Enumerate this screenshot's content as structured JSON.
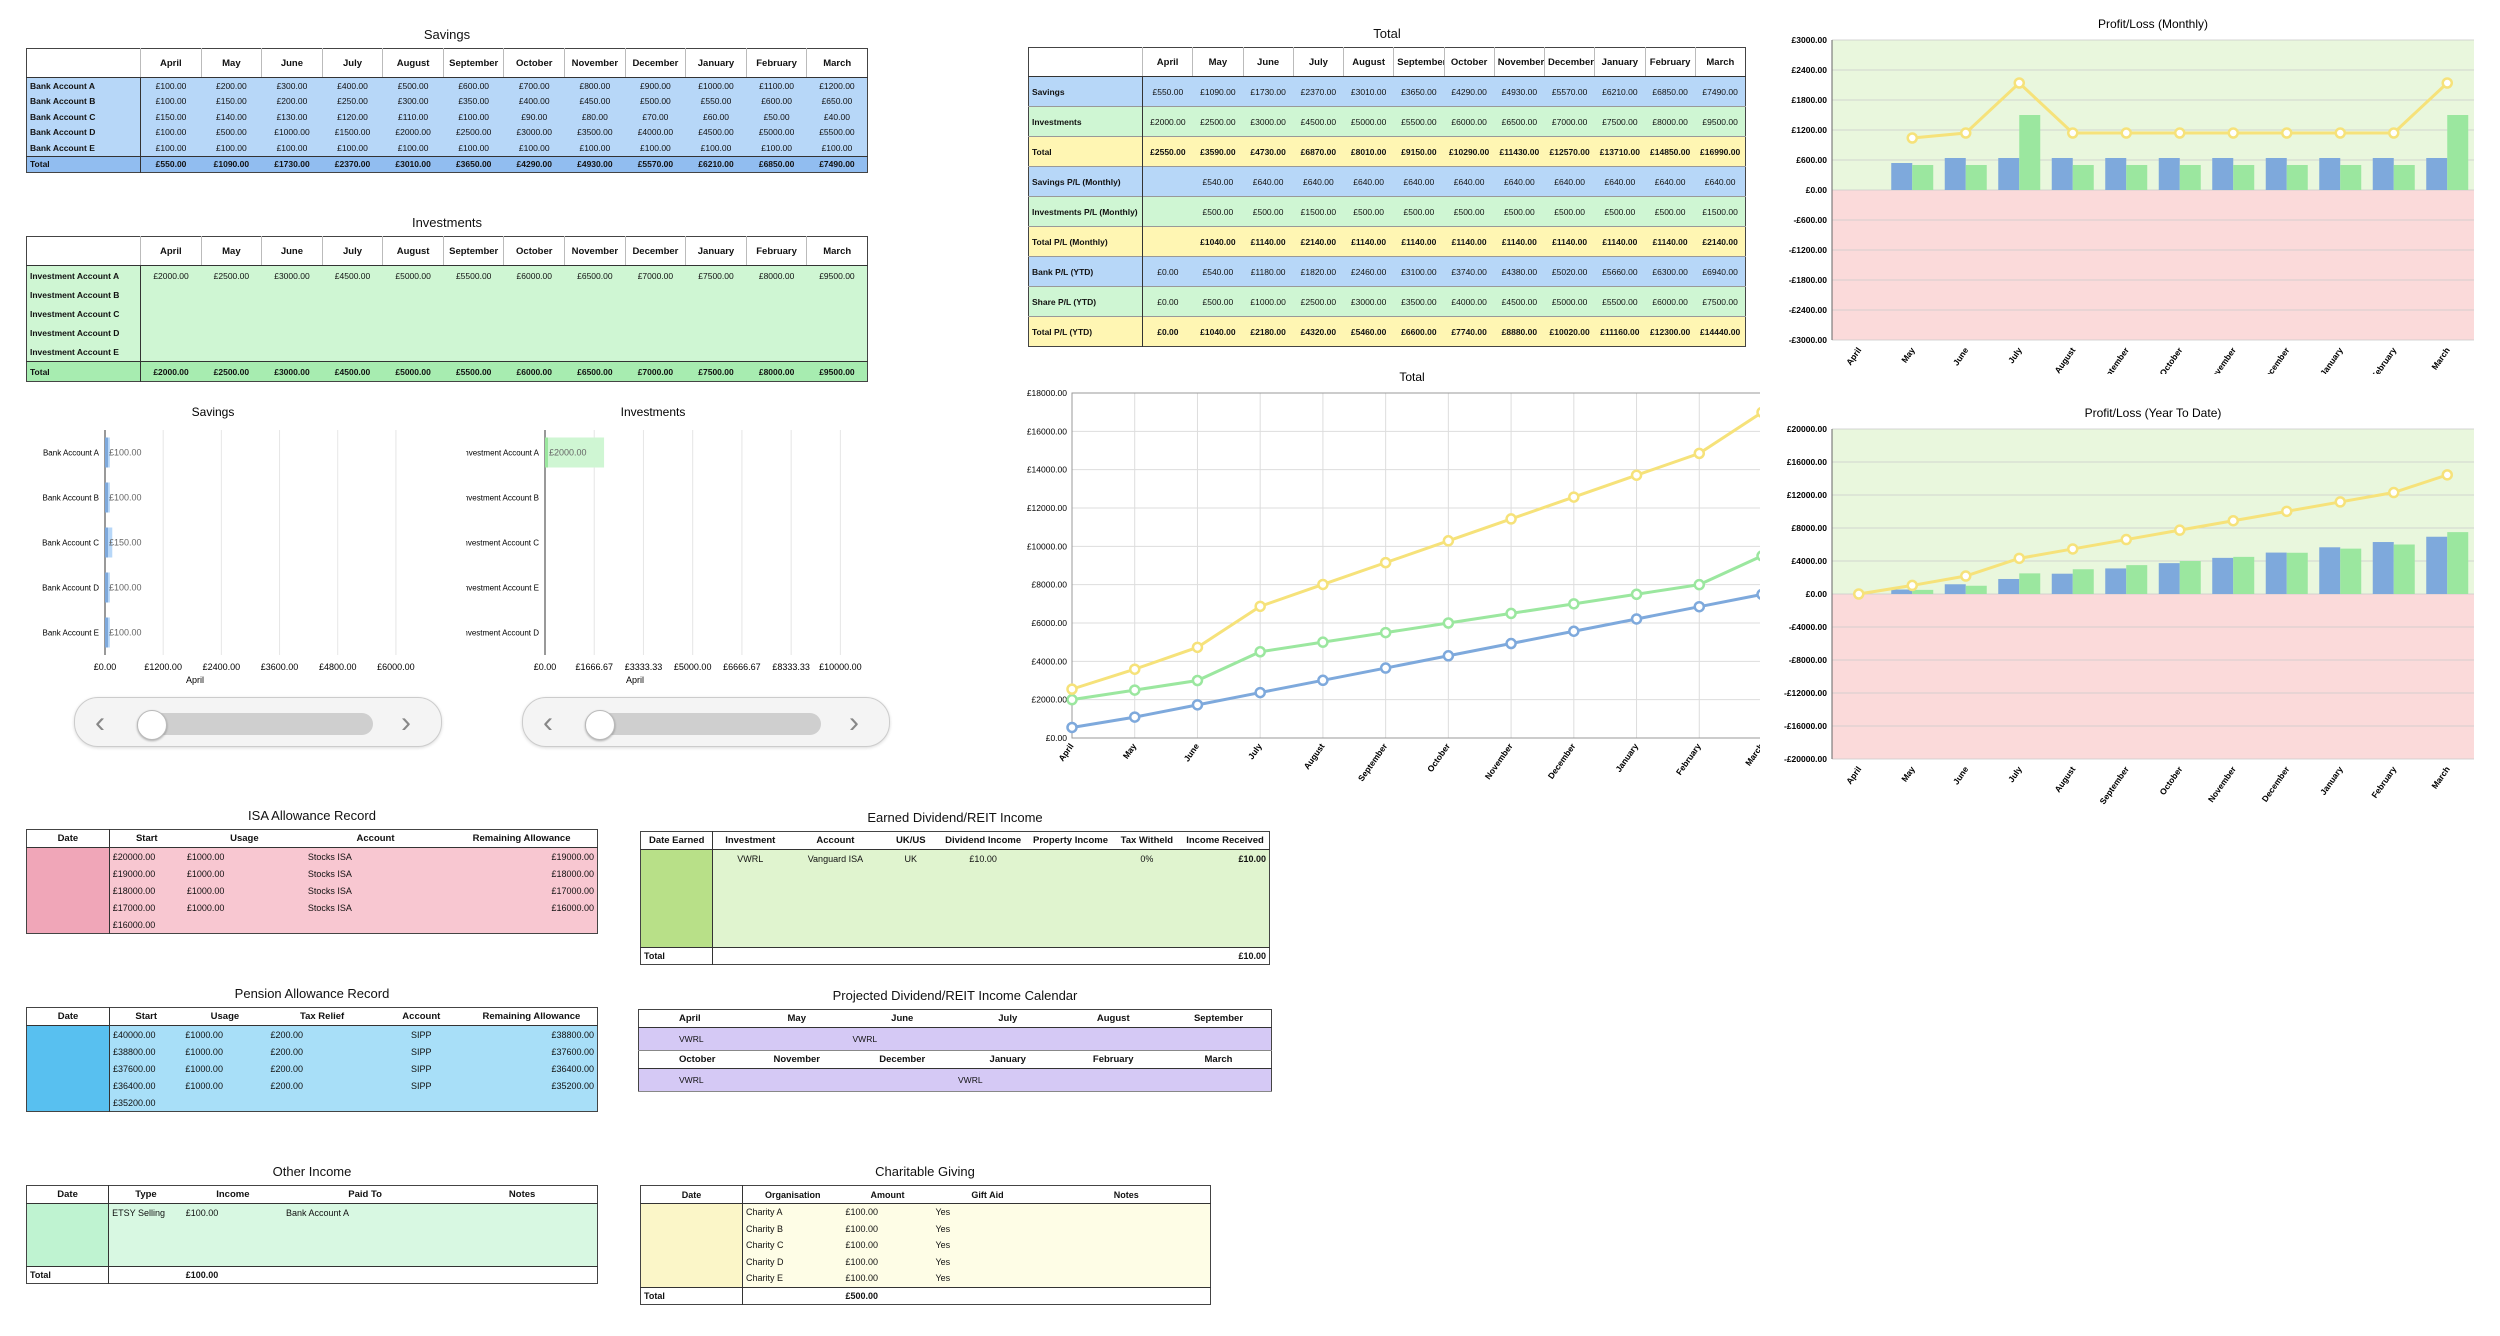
{
  "months": [
    "April",
    "May",
    "June",
    "July",
    "August",
    "September",
    "October",
    "November",
    "December",
    "January",
    "February",
    "March"
  ],
  "savings": {
    "title": "Savings",
    "rows": [
      {
        "label": "Bank Account A",
        "values": [
          "£100.00",
          "£200.00",
          "£300.00",
          "£400.00",
          "£500.00",
          "£600.00",
          "£700.00",
          "£800.00",
          "£900.00",
          "£1000.00",
          "£1100.00",
          "£1200.00"
        ]
      },
      {
        "label": "Bank Account B",
        "values": [
          "£100.00",
          "£150.00",
          "£200.00",
          "£250.00",
          "£300.00",
          "£350.00",
          "£400.00",
          "£450.00",
          "£500.00",
          "£550.00",
          "£600.00",
          "£650.00"
        ]
      },
      {
        "label": "Bank Account C",
        "values": [
          "£150.00",
          "£140.00",
          "£130.00",
          "£120.00",
          "£110.00",
          "£100.00",
          "£90.00",
          "£80.00",
          "£70.00",
          "£60.00",
          "£50.00",
          "£40.00"
        ]
      },
      {
        "label": "Bank Account D",
        "values": [
          "£100.00",
          "£500.00",
          "£1000.00",
          "£1500.00",
          "£2000.00",
          "£2500.00",
          "£3000.00",
          "£3500.00",
          "£4000.00",
          "£4500.00",
          "£5000.00",
          "£5500.00"
        ]
      },
      {
        "label": "Bank Account E",
        "values": [
          "£100.00",
          "£100.00",
          "£100.00",
          "£100.00",
          "£100.00",
          "£100.00",
          "£100.00",
          "£100.00",
          "£100.00",
          "£100.00",
          "£100.00",
          "£100.00"
        ]
      }
    ],
    "total": {
      "label": "Total",
      "values": [
        "£550.00",
        "£1090.00",
        "£1730.00",
        "£2370.00",
        "£3010.00",
        "£3650.00",
        "£4290.00",
        "£4930.00",
        "£5570.00",
        "£6210.00",
        "£6850.00",
        "£7490.00"
      ]
    }
  },
  "investments": {
    "title": "Investments",
    "rows": [
      {
        "label": "Investment Account A",
        "values": [
          "£2000.00",
          "£2500.00",
          "£3000.00",
          "£4500.00",
          "£5000.00",
          "£5500.00",
          "£6000.00",
          "£6500.00",
          "£7000.00",
          "£7500.00",
          "£8000.00",
          "£9500.00"
        ]
      },
      {
        "label": "Investment Account B",
        "values": [
          "",
          "",
          "",
          "",
          "",
          "",
          "",
          "",
          "",
          "",
          "",
          ""
        ]
      },
      {
        "label": "Investment Account C",
        "values": [
          "",
          "",
          "",
          "",
          "",
          "",
          "",
          "",
          "",
          "",
          "",
          ""
        ]
      },
      {
        "label": "Investment Account D",
        "values": [
          "",
          "",
          "",
          "",
          "",
          "",
          "",
          "",
          "",
          "",
          "",
          ""
        ]
      },
      {
        "label": "Investment Account E",
        "values": [
          "",
          "",
          "",
          "",
          "",
          "",
          "",
          "",
          "",
          "",
          "",
          ""
        ]
      }
    ],
    "total": {
      "label": "Total",
      "values": [
        "£2000.00",
        "£2500.00",
        "£3000.00",
        "£4500.00",
        "£5000.00",
        "£5500.00",
        "£6000.00",
        "£6500.00",
        "£7000.00",
        "£7500.00",
        "£8000.00",
        "£9500.00"
      ]
    }
  },
  "total_table": {
    "title": "Total",
    "rows": [
      {
        "label": "Savings",
        "style": "blue",
        "values": [
          "£550.00",
          "£1090.00",
          "£1730.00",
          "£2370.00",
          "£3010.00",
          "£3650.00",
          "£4290.00",
          "£4930.00",
          "£5570.00",
          "£6210.00",
          "£6850.00",
          "£7490.00"
        ]
      },
      {
        "label": "Investments",
        "style": "grn",
        "values": [
          "£2000.00",
          "£2500.00",
          "£3000.00",
          "£4500.00",
          "£5000.00",
          "£5500.00",
          "£6000.00",
          "£6500.00",
          "£7000.00",
          "£7500.00",
          "£8000.00",
          "£9500.00"
        ]
      },
      {
        "label": "Total",
        "style": "yel",
        "bold": true,
        "values": [
          "£2550.00",
          "£3590.00",
          "£4730.00",
          "£6870.00",
          "£8010.00",
          "£9150.00",
          "£10290.00",
          "£11430.00",
          "£12570.00",
          "£13710.00",
          "£14850.00",
          "£16990.00"
        ]
      },
      {
        "label": "Savings P/L (Monthly)",
        "style": "blue",
        "values": [
          "",
          "£540.00",
          "£640.00",
          "£640.00",
          "£640.00",
          "£640.00",
          "£640.00",
          "£640.00",
          "£640.00",
          "£640.00",
          "£640.00",
          "£640.00"
        ]
      },
      {
        "label": "Investments P/L (Monthly)",
        "style": "grn",
        "values": [
          "",
          "£500.00",
          "£500.00",
          "£1500.00",
          "£500.00",
          "£500.00",
          "£500.00",
          "£500.00",
          "£500.00",
          "£500.00",
          "£500.00",
          "£1500.00"
        ]
      },
      {
        "label": "Total P/L (Monthly)",
        "style": "yel",
        "bold": true,
        "values": [
          "",
          "£1040.00",
          "£1140.00",
          "£2140.00",
          "£1140.00",
          "£1140.00",
          "£1140.00",
          "£1140.00",
          "£1140.00",
          "£1140.00",
          "£1140.00",
          "£2140.00"
        ]
      },
      {
        "label": "Bank P/L (YTD)",
        "style": "blue",
        "values": [
          "£0.00",
          "£540.00",
          "£1180.00",
          "£1820.00",
          "£2460.00",
          "£3100.00",
          "£3740.00",
          "£4380.00",
          "£5020.00",
          "£5660.00",
          "£6300.00",
          "£6940.00"
        ]
      },
      {
        "label": "Share P/L (YTD)",
        "style": "grn",
        "values": [
          "£0.00",
          "£500.00",
          "£1000.00",
          "£2500.00",
          "£3000.00",
          "£3500.00",
          "£4000.00",
          "£4500.00",
          "£5000.00",
          "£5500.00",
          "£6000.00",
          "£7500.00"
        ]
      },
      {
        "label": "Total P/L (YTD)",
        "style": "yel",
        "bold": true,
        "values": [
          "£0.00",
          "£1040.00",
          "£2180.00",
          "£4320.00",
          "£5460.00",
          "£6600.00",
          "£7740.00",
          "£8880.00",
          "£10020.00",
          "£11160.00",
          "£12300.00",
          "£14440.00"
        ]
      }
    ]
  },
  "isa": {
    "title": "ISA Allowance Record",
    "headers": [
      "Date",
      "Start",
      "Usage",
      "Account",
      "Remaining Allowance"
    ],
    "rows": [
      [
        "",
        "£20000.00",
        "£1000.00",
        "Stocks ISA",
        "£19000.00"
      ],
      [
        "",
        "£19000.00",
        "£1000.00",
        "Stocks ISA",
        "£18000.00"
      ],
      [
        "",
        "£18000.00",
        "£1000.00",
        "Stocks ISA",
        "£17000.00"
      ],
      [
        "",
        "£17000.00",
        "£1000.00",
        "Stocks ISA",
        "£16000.00"
      ],
      [
        "",
        "£16000.00",
        "",
        "",
        ""
      ]
    ]
  },
  "pension": {
    "title": "Pension Allowance Record",
    "headers": [
      "Date",
      "Start",
      "Usage",
      "Tax Relief",
      "Account",
      "Remaining Allowance"
    ],
    "rows": [
      [
        "",
        "£40000.00",
        "£1000.00",
        "£200.00",
        "SIPP",
        "£38800.00"
      ],
      [
        "",
        "£38800.00",
        "£1000.00",
        "£200.00",
        "SIPP",
        "£37600.00"
      ],
      [
        "",
        "£37600.00",
        "£1000.00",
        "£200.00",
        "SIPP",
        "£36400.00"
      ],
      [
        "",
        "£36400.00",
        "£1000.00",
        "£200.00",
        "SIPP",
        "£35200.00"
      ],
      [
        "",
        "£35200.00",
        "",
        "",
        "",
        ""
      ]
    ]
  },
  "other_income": {
    "title": "Other Income",
    "headers": [
      "Date",
      "Type",
      "Income",
      "Paid To",
      "Notes"
    ],
    "rows": [
      [
        "",
        "ETSY Selling",
        "£100.00",
        "Bank Account A",
        ""
      ]
    ],
    "total_label": "Total",
    "total_value": "£100.00"
  },
  "dividend": {
    "title": "Earned Dividend/REIT Income",
    "headers": [
      "Date Earned",
      "Investment",
      "Account",
      "UK/US",
      "Dividend Income",
      "Property Income",
      "Tax Witheld",
      "Income Received"
    ],
    "rows": [
      [
        "",
        "VWRL",
        "Vanguard ISA",
        "UK",
        "£10.00",
        "",
        "0%",
        "£10.00"
      ]
    ],
    "total_label": "Total",
    "total_value": "£10.00"
  },
  "projected": {
    "title": "Projected Dividend/REIT Income Calendar",
    "row1_months": [
      "April",
      "May",
      "June",
      "July",
      "August",
      "September"
    ],
    "row1_values": [
      "VWRL",
      "",
      "VWRL",
      "",
      "",
      ""
    ],
    "row2_months": [
      "October",
      "November",
      "December",
      "January",
      "February",
      "March"
    ],
    "row2_values": [
      "VWRL",
      "",
      "",
      "VWRL",
      "",
      ""
    ]
  },
  "charity": {
    "title": "Charitable Giving",
    "headers": [
      "Date",
      "Organisation",
      "Amount",
      "Gift Aid",
      "Notes"
    ],
    "rows": [
      [
        "",
        "Charity A",
        "£100.00",
        "Yes",
        ""
      ],
      [
        "",
        "Charity B",
        "£100.00",
        "Yes",
        ""
      ],
      [
        "",
        "Charity C",
        "£100.00",
        "Yes",
        ""
      ],
      [
        "",
        "Charity D",
        "£100.00",
        "Yes",
        ""
      ],
      [
        "",
        "Charity E",
        "£100.00",
        "Yes",
        ""
      ]
    ],
    "total_label": "Total",
    "total_value": "£500.00"
  },
  "colors": {
    "savings": "#7ea9dc",
    "investments": "#9be79f",
    "total": "#f6e27a",
    "profit_bg": "#e9f7dd",
    "loss_bg": "#fbdada"
  },
  "chart_data": [
    {
      "type": "bar",
      "orientation": "horizontal",
      "title": "Savings",
      "xlabel": "April",
      "categories": [
        "Bank Account A",
        "Bank Account B",
        "Bank Account C",
        "Bank Account D",
        "Bank Account E"
      ],
      "values": [
        100,
        100,
        150,
        100,
        100
      ],
      "value_labels": [
        "£100.00",
        "£100.00",
        "£150.00",
        "£100.00",
        "£100.00"
      ],
      "xlim": [
        0,
        7200
      ],
      "xticks": [
        "£0.00",
        "£1200.00",
        "£2400.00",
        "£3600.00",
        "£4800.00",
        "£6000.00"
      ]
    },
    {
      "type": "bar",
      "orientation": "horizontal",
      "title": "Investments",
      "xlabel": "April",
      "categories": [
        "Investment Account A",
        "Investment Account B",
        "Investment Account C",
        "Investment Account E",
        "Investment Account D"
      ],
      "values": [
        2000,
        0,
        0,
        0,
        0
      ],
      "value_labels": [
        "£2000.00",
        "",
        "",
        "",
        ""
      ],
      "xlim": [
        0,
        11666.67
      ],
      "xticks": [
        "£0.00",
        "£1666.67",
        "£3333.33",
        "£5000.00",
        "£6666.67",
        "£8333.33",
        "£10000.00"
      ]
    },
    {
      "type": "line",
      "title": "Total",
      "categories": [
        "April",
        "May",
        "June",
        "July",
        "August",
        "September",
        "October",
        "November",
        "December",
        "January",
        "February",
        "March"
      ],
      "series": [
        {
          "values": [
            550,
            1090,
            1730,
            2370,
            3010,
            3650,
            4290,
            4930,
            5570,
            6210,
            6850,
            7490
          ],
          "color": "#7ea9dc"
        },
        {
          "values": [
            2000,
            2500,
            3000,
            4500,
            5000,
            5500,
            6000,
            6500,
            7000,
            7500,
            8000,
            9500
          ],
          "color": "#9be79f"
        },
        {
          "values": [
            2550,
            3590,
            4730,
            6870,
            8010,
            9150,
            10290,
            11430,
            12570,
            13710,
            14850,
            16990
          ],
          "color": "#f6e27a"
        }
      ],
      "ylim": [
        0,
        18000
      ],
      "yticks": [
        "£0.00",
        "£2000.00",
        "£4000.00",
        "£6000.00",
        "£8000.00",
        "£10000.00",
        "£12000.00",
        "£14000.00",
        "£16000.00",
        "£18000.00"
      ]
    },
    {
      "type": "bar",
      "title": "Profit/Loss (Monthly)",
      "categories": [
        "April",
        "May",
        "June",
        "July",
        "August",
        "September",
        "October",
        "November",
        "December",
        "January",
        "February",
        "March"
      ],
      "series": [
        {
          "values": [
            0,
            540,
            640,
            640,
            640,
            640,
            640,
            640,
            640,
            640,
            640,
            640
          ],
          "color": "#7ea9dc"
        },
        {
          "values": [
            0,
            500,
            500,
            1500,
            500,
            500,
            500,
            500,
            500,
            500,
            500,
            1500
          ],
          "color": "#9be79f"
        }
      ],
      "line": {
        "values": [
          null,
          1040,
          1140,
          2140,
          1140,
          1140,
          1140,
          1140,
          1140,
          1140,
          1140,
          2140
        ],
        "color": "#f6e27a"
      },
      "ylim": [
        -3000,
        3000
      ],
      "yticks": [
        "-£3000.00",
        "-£2400.00",
        "-£1800.00",
        "-£1200.00",
        "-£600.00",
        "£0.00",
        "£600.00",
        "£1200.00",
        "£1800.00",
        "£2400.00",
        "£3000.00"
      ]
    },
    {
      "type": "bar",
      "title": "Profit/Loss (Year To Date)",
      "categories": [
        "April",
        "May",
        "June",
        "July",
        "August",
        "September",
        "October",
        "November",
        "December",
        "January",
        "February",
        "March"
      ],
      "series": [
        {
          "values": [
            0,
            540,
            1180,
            1820,
            2460,
            3100,
            3740,
            4380,
            5020,
            5660,
            6300,
            6940
          ],
          "color": "#7ea9dc"
        },
        {
          "values": [
            0,
            500,
            1000,
            2500,
            3000,
            3500,
            4000,
            4500,
            5000,
            5500,
            6000,
            7500
          ],
          "color": "#9be79f"
        }
      ],
      "line": {
        "values": [
          0,
          1040,
          2180,
          4320,
          5460,
          6600,
          7740,
          8880,
          10020,
          11160,
          12300,
          14440
        ],
        "color": "#f6e27a"
      },
      "ylim": [
        -20000,
        20000
      ],
      "yticks": [
        "-£20000.00",
        "-£16000.00",
        "-£12000.00",
        "-£8000.00",
        "-£4000.00",
        "£0.00",
        "£4000.00",
        "£8000.00",
        "£12000.00",
        "£16000.00",
        "£20000.00"
      ]
    }
  ]
}
